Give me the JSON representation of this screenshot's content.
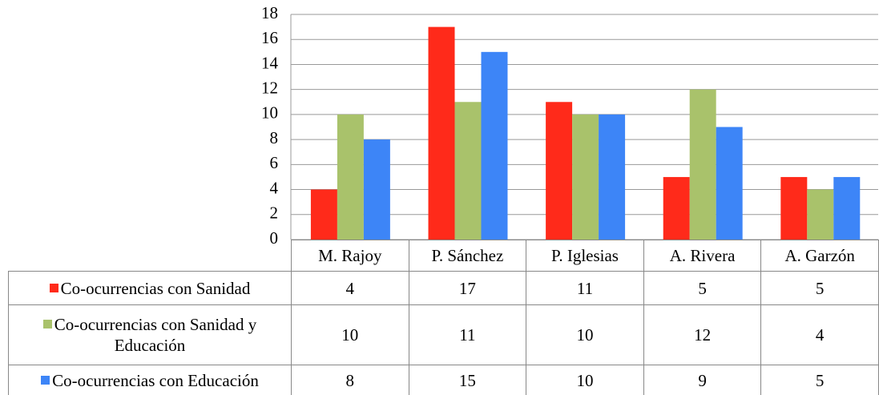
{
  "chart_data": {
    "type": "bar",
    "categories": [
      "M. Rajoy",
      "P. Sánchez",
      "P. Iglesias",
      "A. Rivera",
      "A. Garzón"
    ],
    "series": [
      {
        "name": "Co-ocurrencias con Sanidad",
        "color": "#ff2a1a",
        "values": [
          4,
          17,
          11,
          5,
          5
        ]
      },
      {
        "name": "Co-ocurrencias con Sanidad y Educación",
        "color": "#a9c26b",
        "values": [
          10,
          11,
          10,
          12,
          4
        ]
      },
      {
        "name": "Co-ocurrencias con Educación",
        "color": "#3d85f7",
        "values": [
          8,
          15,
          10,
          9,
          5
        ]
      }
    ],
    "ylim": [
      0,
      18
    ],
    "yticks": [
      0,
      2,
      4,
      6,
      8,
      10,
      12,
      14,
      16,
      18
    ],
    "grid": true
  }
}
